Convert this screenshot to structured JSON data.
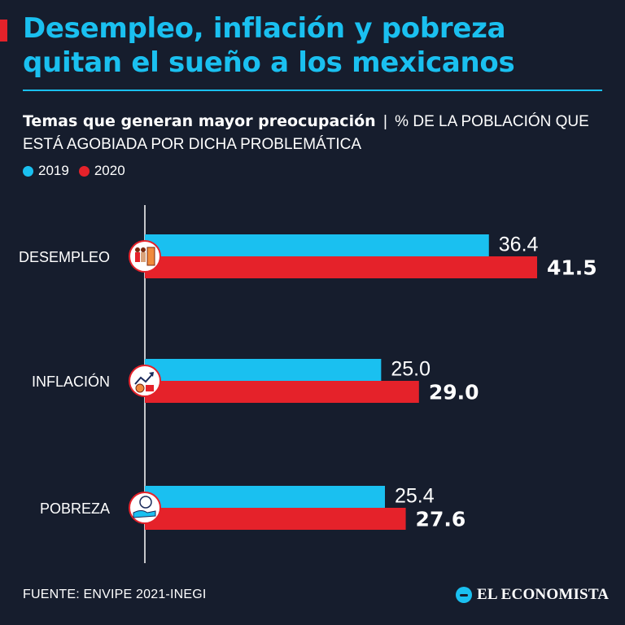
{
  "header": {
    "title": "Desempleo, inflación y pobreza quitan el sueño a los mexicanos",
    "subtitle_bold": "Temas que generan mayor preocupación",
    "subtitle_sep": "|",
    "subtitle_rest": "% DE LA POBLACIÓN QUE ESTÁ AGOBIADA POR DICHA PROBLEMÁTICA"
  },
  "colors": {
    "background": "#161d2d",
    "accent_2019": "#1ac0f0",
    "accent_2020": "#e5222a",
    "title": "#1ac0f0"
  },
  "chart_data": {
    "type": "bar",
    "orientation": "horizontal",
    "categories": [
      "DESEMPLEO",
      "INFLACIÓN",
      "POBREZA"
    ],
    "category_icons": [
      "unemployment-icon",
      "inflation-icon",
      "poverty-icon"
    ],
    "series": [
      {
        "name": "2019",
        "color": "#1ac0f0",
        "values": [
          36.4,
          25.0,
          25.4
        ]
      },
      {
        "name": "2020",
        "color": "#e5222a",
        "values": [
          41.5,
          29.0,
          27.6
        ]
      }
    ],
    "value_labels": [
      [
        "36.4",
        "25.0",
        "25.4"
      ],
      [
        "41.5",
        "29.0",
        "27.6"
      ]
    ],
    "xlim": [
      0,
      45
    ],
    "grid": false,
    "legend": "top-left"
  },
  "footer": {
    "source": "FUENTE: ENVIPE 2021-INEGI",
    "brand": "EL ECONOMISTA"
  }
}
